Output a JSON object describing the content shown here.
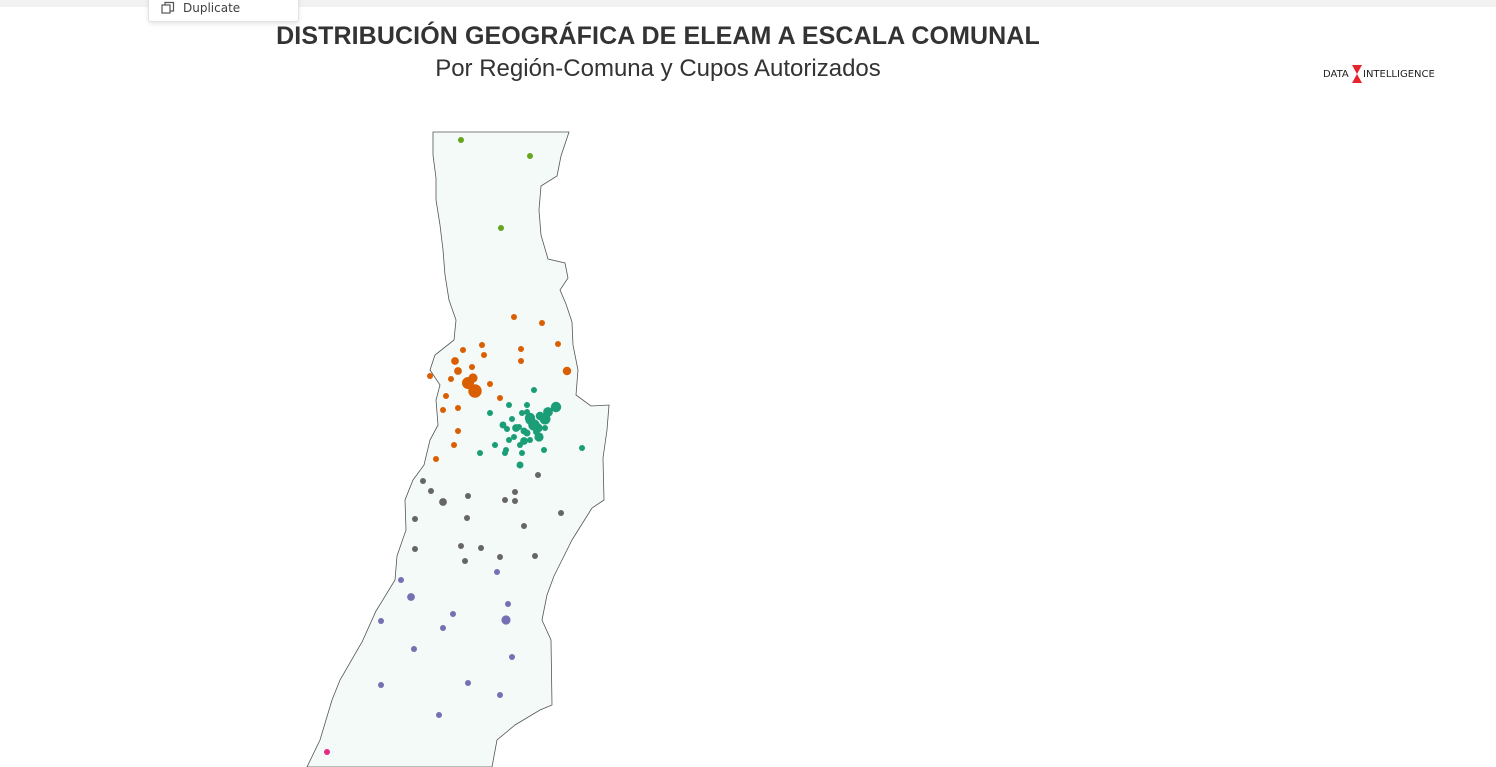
{
  "menu": {
    "duplicate_label": "Duplicate",
    "duplicate_icon": "duplicate-icon"
  },
  "header": {
    "title": "DISTRIBUCIÓN GEOGRÁFICA DE ELEAM A ESCALA COMUNAL",
    "subtitle": "Por Región-Comuna y Cupos Autorizados"
  },
  "logo": {
    "text_left": "DATA",
    "text_right": "INTELLIGENCE",
    "accent_color": "#e8232c"
  },
  "map_data": {
    "colors": {
      "land_fill": "#f4faf7",
      "land_stroke": "#555555",
      "regions": [
        "#66a61e",
        "#d95f02",
        "#1b9e77",
        "#666666",
        "#7570b3",
        "#e7298a"
      ]
    },
    "comunas_by_region": [
      {
        "region_color_index": 0,
        "cupos": [
          6,
          6,
          6
        ]
      },
      {
        "region_color_index": 1,
        "cupos": [
          6,
          6,
          6,
          6,
          6,
          6,
          6,
          10,
          6,
          6,
          6,
          24,
          30,
          14,
          12,
          10,
          6,
          6,
          6,
          6,
          6,
          6,
          6,
          6,
          6
        ]
      },
      {
        "region_color_index": 2,
        "cupos": [
          6,
          6,
          6,
          6,
          6,
          6,
          6,
          6,
          8,
          6,
          6,
          6,
          6,
          6,
          10,
          8,
          14,
          12,
          20,
          16,
          18,
          14,
          22,
          18,
          14,
          10,
          6,
          8,
          6,
          6,
          6,
          6,
          8,
          6,
          6,
          6,
          6
        ]
      },
      {
        "region_color_index": 3,
        "cupos": [
          6,
          6,
          6,
          6,
          10,
          6,
          6,
          6,
          6,
          6,
          6,
          6,
          6,
          6,
          6,
          6,
          6,
          6
        ]
      },
      {
        "region_color_index": 4,
        "cupos": [
          6,
          6,
          10,
          6,
          6,
          6,
          14,
          6,
          6,
          6,
          6,
          6,
          6,
          6
        ]
      },
      {
        "region_color_index": 5,
        "cupos": [
          6
        ]
      }
    ]
  }
}
